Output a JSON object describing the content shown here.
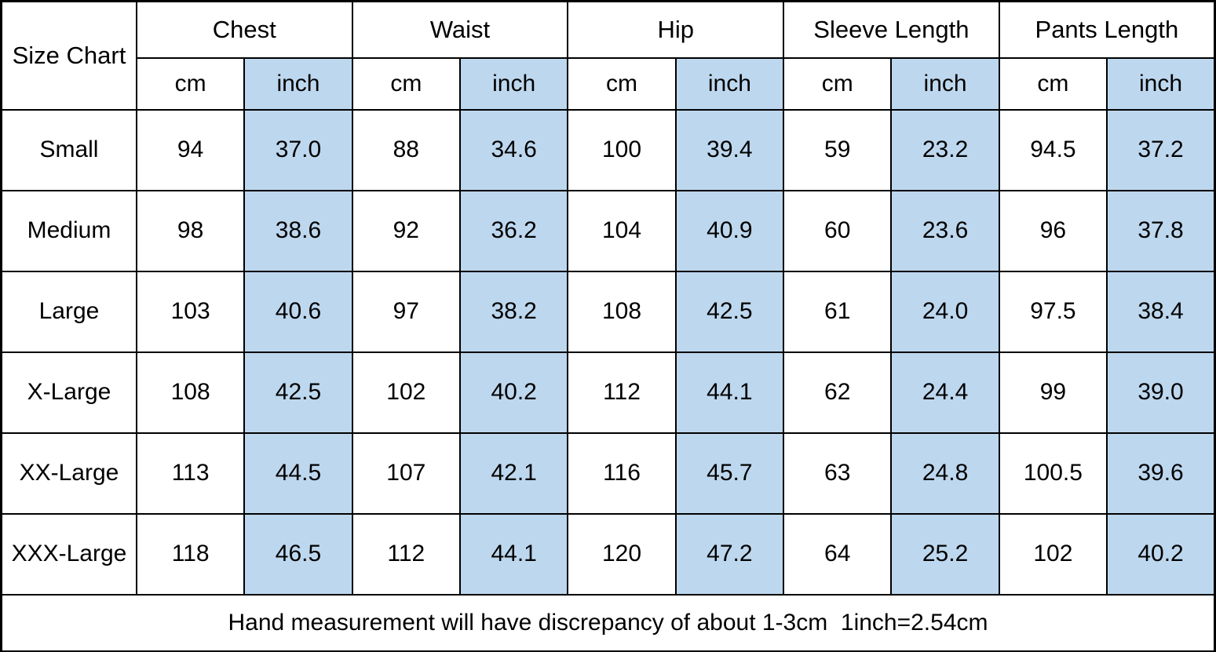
{
  "chart_data": {
    "type": "table",
    "title": "Size Chart",
    "column_groups": [
      {
        "label": "Chest"
      },
      {
        "label": "Waist"
      },
      {
        "label": "Hip"
      },
      {
        "label": "Sleeve Length"
      },
      {
        "label": "Pants Length"
      }
    ],
    "unit_labels": {
      "cm": "cm",
      "inch": "inch"
    },
    "rows": [
      {
        "size": "Small",
        "values": [
          "94",
          "37.0",
          "88",
          "34.6",
          "100",
          "39.4",
          "59",
          "23.2",
          "94.5",
          "37.2"
        ]
      },
      {
        "size": "Medium",
        "values": [
          "98",
          "38.6",
          "92",
          "36.2",
          "104",
          "40.9",
          "60",
          "23.6",
          "96",
          "37.8"
        ]
      },
      {
        "size": "Large",
        "values": [
          "103",
          "40.6",
          "97",
          "38.2",
          "108",
          "42.5",
          "61",
          "24.0",
          "97.5",
          "38.4"
        ]
      },
      {
        "size": "X-Large",
        "values": [
          "108",
          "42.5",
          "102",
          "40.2",
          "112",
          "44.1",
          "62",
          "24.4",
          "99",
          "39.0"
        ]
      },
      {
        "size": "XX-Large",
        "values": [
          "113",
          "44.5",
          "107",
          "42.1",
          "116",
          "45.7",
          "63",
          "24.8",
          "100.5",
          "39.6"
        ]
      },
      {
        "size": "XXX-Large",
        "values": [
          "118",
          "46.5",
          "112",
          "44.1",
          "120",
          "47.2",
          "64",
          "25.2",
          "102",
          "40.2"
        ]
      }
    ],
    "footnote": "Hand measurement will have discrepancy of about 1-3cm  1inch=2.54cm",
    "layout_hints": {
      "highlighted_columns": "inch",
      "grid": "on",
      "legend": "none"
    }
  },
  "colors": {
    "inch_highlight": "#bdd7ee",
    "border": "#000000",
    "background": "#ffffff",
    "text": "#000000"
  }
}
